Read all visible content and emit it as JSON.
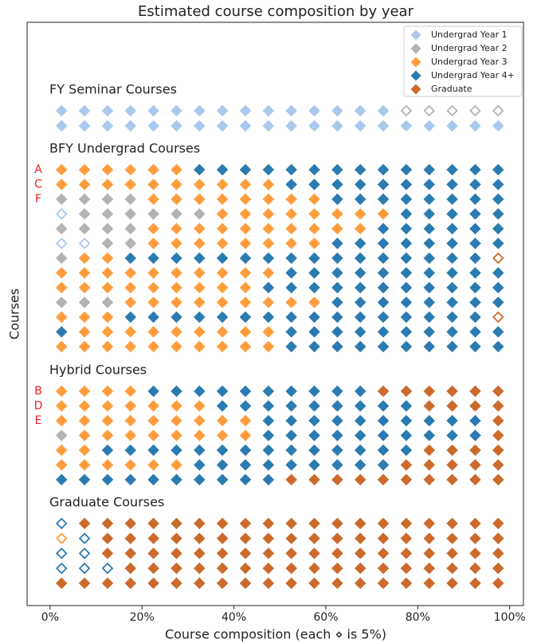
{
  "chart_data": {
    "type": "waffle",
    "title": "Estimated course composition by year",
    "xlabel": "Course composition (each ⋄ is 5%)",
    "ylabel": "Courses",
    "xlim": [
      -5,
      103
    ],
    "xticks": [
      {
        "value": 0,
        "label": "0%"
      },
      {
        "value": 20,
        "label": "20%"
      },
      {
        "value": 40,
        "label": "40%"
      },
      {
        "value": 60,
        "label": "60%"
      },
      {
        "value": 80,
        "label": "80%"
      },
      {
        "value": 100,
        "label": "100%"
      }
    ],
    "cell_percent": 5,
    "legend": "upper right",
    "series": [
      {
        "name": "Undergrad Year 1",
        "color": "#a9c9ec"
      },
      {
        "name": "Undergrad Year 2",
        "color": "#b3b3b3"
      },
      {
        "name": "Undergrad Year 3",
        "color": "#ff9d3d"
      },
      {
        "name": "Undergrad Year 4+",
        "color": "#2b7bb0"
      },
      {
        "name": "Graduate",
        "color": "#cc6a2c"
      }
    ],
    "groups": [
      {
        "title": "FY Seminar Courses",
        "row_labels": [],
        "rows": [
          {
            "cells": [
              0,
              0,
              0,
              0,
              0,
              0,
              0,
              0,
              0,
              0,
              0,
              0,
              0,
              0,
              0,
              1,
              1,
              1,
              1,
              1
            ],
            "hollow": [
              15,
              16,
              17,
              18,
              19
            ]
          },
          {
            "cells": [
              0,
              0,
              0,
              0,
              0,
              0,
              0,
              0,
              0,
              0,
              0,
              0,
              0,
              0,
              0,
              0,
              0,
              0,
              0,
              0
            ],
            "hollow": []
          }
        ]
      },
      {
        "title": "BFY Undergrad Courses",
        "row_labels": [
          "A",
          "C",
          "F"
        ],
        "rows": [
          {
            "cells": [
              2,
              2,
              2,
              2,
              2,
              2,
              3,
              3,
              3,
              3,
              3,
              3,
              3,
              3,
              3,
              3,
              3,
              3,
              3,
              3
            ],
            "hollow": []
          },
          {
            "cells": [
              2,
              2,
              2,
              2,
              2,
              2,
              2,
              2,
              2,
              2,
              3,
              3,
              3,
              3,
              3,
              3,
              3,
              3,
              3,
              3
            ],
            "hollow": []
          },
          {
            "cells": [
              1,
              1,
              1,
              1,
              2,
              2,
              2,
              2,
              2,
              2,
              2,
              2,
              3,
              3,
              3,
              3,
              3,
              3,
              3,
              3
            ],
            "hollow": []
          },
          {
            "cells": [
              0,
              1,
              1,
              1,
              1,
              1,
              1,
              2,
              2,
              2,
              2,
              2,
              2,
              2,
              2,
              3,
              3,
              3,
              3,
              3
            ],
            "hollow": [
              0
            ]
          },
          {
            "cells": [
              1,
              1,
              1,
              1,
              2,
              2,
              2,
              2,
              2,
              2,
              2,
              2,
              2,
              2,
              3,
              3,
              3,
              3,
              3,
              3
            ],
            "hollow": []
          },
          {
            "cells": [
              0,
              0,
              1,
              1,
              2,
              2,
              2,
              2,
              2,
              2,
              2,
              2,
              3,
              3,
              3,
              3,
              3,
              3,
              3,
              3
            ],
            "hollow": [
              0,
              1
            ]
          },
          {
            "cells": [
              1,
              2,
              2,
              3,
              3,
              3,
              3,
              3,
              3,
              3,
              3,
              3,
              3,
              3,
              3,
              3,
              3,
              3,
              3,
              4
            ],
            "hollow": [
              19
            ]
          },
          {
            "cells": [
              2,
              2,
              2,
              2,
              2,
              2,
              2,
              2,
              2,
              2,
              3,
              3,
              3,
              3,
              3,
              3,
              3,
              3,
              3,
              3
            ],
            "hollow": []
          },
          {
            "cells": [
              2,
              2,
              2,
              2,
              2,
              2,
              2,
              2,
              2,
              3,
              3,
              3,
              3,
              3,
              3,
              3,
              3,
              3,
              3,
              3
            ],
            "hollow": []
          },
          {
            "cells": [
              1,
              1,
              1,
              2,
              2,
              2,
              2,
              2,
              2,
              2,
              2,
              2,
              3,
              3,
              3,
              3,
              3,
              3,
              3,
              3
            ],
            "hollow": []
          },
          {
            "cells": [
              2,
              2,
              2,
              3,
              3,
              3,
              3,
              3,
              3,
              3,
              3,
              3,
              3,
              3,
              3,
              3,
              3,
              3,
              3,
              4
            ],
            "hollow": [
              19
            ]
          },
          {
            "cells": [
              3,
              2,
              2,
              2,
              2,
              2,
              2,
              2,
              2,
              2,
              3,
              3,
              3,
              3,
              3,
              3,
              3,
              3,
              3,
              3
            ],
            "hollow": []
          },
          {
            "cells": [
              2,
              2,
              2,
              2,
              2,
              2,
              2,
              2,
              2,
              2,
              3,
              3,
              3,
              3,
              3,
              3,
              3,
              3,
              3,
              3
            ],
            "hollow": []
          }
        ]
      },
      {
        "title": "Hybrid Courses",
        "row_labels": [
          "B",
          "D",
          "E"
        ],
        "rows": [
          {
            "cells": [
              2,
              2,
              2,
              2,
              3,
              3,
              3,
              3,
              3,
              3,
              3,
              3,
              3,
              3,
              4,
              4,
              4,
              4,
              4,
              4
            ],
            "hollow": []
          },
          {
            "cells": [
              2,
              2,
              2,
              2,
              2,
              2,
              2,
              3,
              3,
              3,
              3,
              3,
              3,
              3,
              3,
              3,
              4,
              4,
              4,
              4
            ],
            "hollow": []
          },
          {
            "cells": [
              2,
              2,
              2,
              2,
              2,
              2,
              2,
              2,
              2,
              3,
              3,
              3,
              3,
              3,
              3,
              3,
              3,
              3,
              3,
              4
            ],
            "hollow": []
          },
          {
            "cells": [
              1,
              2,
              2,
              2,
              2,
              2,
              2,
              2,
              2,
              3,
              3,
              3,
              3,
              3,
              3,
              3,
              3,
              3,
              3,
              4
            ],
            "hollow": []
          },
          {
            "cells": [
              2,
              2,
              3,
              3,
              3,
              3,
              3,
              3,
              3,
              3,
              3,
              3,
              3,
              3,
              3,
              3,
              4,
              4,
              4,
              4
            ],
            "hollow": []
          },
          {
            "cells": [
              2,
              2,
              2,
              2,
              2,
              2,
              3,
              3,
              3,
              3,
              3,
              3,
              3,
              3,
              3,
              4,
              4,
              4,
              4,
              4
            ],
            "hollow": []
          },
          {
            "cells": [
              3,
              3,
              3,
              3,
              3,
              3,
              3,
              3,
              3,
              3,
              4,
              4,
              4,
              4,
              4,
              4,
              4,
              4,
              4,
              4
            ],
            "hollow": []
          }
        ]
      },
      {
        "title": "Graduate Courses",
        "row_labels": [],
        "rows": [
          {
            "cells": [
              3,
              4,
              4,
              4,
              4,
              4,
              4,
              4,
              4,
              4,
              4,
              4,
              4,
              4,
              4,
              4,
              4,
              4,
              4,
              4
            ],
            "hollow": [
              0
            ]
          },
          {
            "cells": [
              2,
              3,
              4,
              4,
              4,
              4,
              4,
              4,
              4,
              4,
              4,
              4,
              4,
              4,
              4,
              4,
              4,
              4,
              4,
              4
            ],
            "hollow": [
              0,
              1
            ]
          },
          {
            "cells": [
              3,
              3,
              4,
              4,
              4,
              4,
              4,
              4,
              4,
              4,
              4,
              4,
              4,
              4,
              4,
              4,
              4,
              4,
              4,
              4
            ],
            "hollow": [
              0,
              1
            ]
          },
          {
            "cells": [
              3,
              3,
              3,
              4,
              4,
              4,
              4,
              4,
              4,
              4,
              4,
              4,
              4,
              4,
              4,
              4,
              4,
              4,
              4,
              4
            ],
            "hollow": [
              0,
              1,
              2
            ]
          },
          {
            "cells": [
              4,
              4,
              4,
              4,
              4,
              4,
              4,
              4,
              4,
              4,
              4,
              4,
              4,
              4,
              4,
              4,
              4,
              4,
              4,
              4
            ],
            "hollow": []
          }
        ]
      }
    ]
  }
}
